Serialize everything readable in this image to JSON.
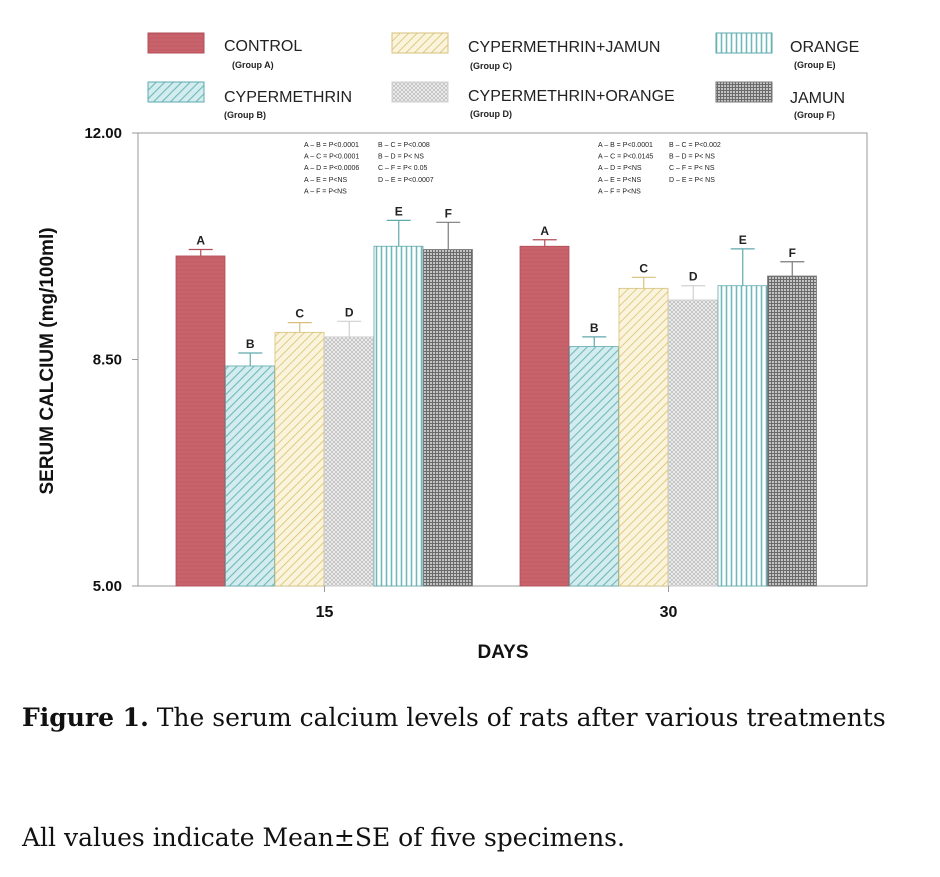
{
  "chart_data": {
    "type": "bar",
    "ylabel": "SERUM CALCIUM (mg/100ml)",
    "xlabel": "DAYS",
    "ylim": [
      5.0,
      12.0
    ],
    "yticks": [
      "5.00",
      "8.50",
      "12.00"
    ],
    "categories": [
      "15",
      "30"
    ],
    "series": [
      {
        "name": "CONTROL",
        "group": "(Group A)",
        "letter": "A",
        "pattern": "solid",
        "color": "#c8636b",
        "values": [
          10.1,
          10.25
        ],
        "errors": [
          0.1,
          0.1
        ]
      },
      {
        "name": "CYPERMETHRIN",
        "group": "(Group B)",
        "letter": "B",
        "pattern": "diag",
        "color": "#7fc2c6",
        "values": [
          8.4,
          8.7
        ],
        "errors": [
          0.2,
          0.15
        ]
      },
      {
        "name": "CYPERMETHRIN+JAMUN",
        "group": "(Group C)",
        "letter": "C",
        "pattern": "diag",
        "color": "#d8c27a",
        "values": [
          8.92,
          9.6
        ],
        "errors": [
          0.15,
          0.17
        ]
      },
      {
        "name": "CYPERMETHRIN+ORANGE",
        "group": "(Group D)",
        "letter": "D",
        "pattern": "cross",
        "color": "#c9c9c9",
        "values": [
          8.85,
          9.42
        ],
        "errors": [
          0.24,
          0.22
        ]
      },
      {
        "name": "ORANGE",
        "group": "(Group E)",
        "letter": "E",
        "pattern": "vert",
        "color": "#7fc2c6",
        "values": [
          10.25,
          9.64
        ],
        "errors": [
          0.4,
          0.57
        ]
      },
      {
        "name": "JAMUN",
        "group": "(Group F)",
        "letter": "F",
        "pattern": "grid",
        "color": "#777777",
        "values": [
          10.2,
          9.79
        ],
        "errors": [
          0.42,
          0.22
        ]
      }
    ],
    "legend_placement": "top",
    "annotations": [
      {
        "category": "15",
        "columns": [
          [
            "A – B = P<0.0001",
            "A – C = P<0.0001",
            "A – D = P<0.0006",
            "A – E = P<NS",
            "A – F = P<NS"
          ],
          [
            "B – C = P<0.008",
            "B – D = P< NS",
            "C – F = P< 0.05",
            "D – E = P<0.0007"
          ]
        ]
      },
      {
        "category": "30",
        "columns": [
          [
            "A – B = P<0.0001",
            "A – C = P<0.0145",
            "A – D = P<NS",
            "A – E = P<NS",
            "A – F = P<NS"
          ],
          [
            "B – C = P<0.002",
            "B – D = P< NS",
            "C – F = P< NS",
            "D – E = P< NS"
          ]
        ]
      }
    ]
  },
  "caption": {
    "label": "Figure 1.",
    "text": " The serum calcium levels of rats after various treatments",
    "note": "All values indicate Mean±SE of five specimens."
  }
}
